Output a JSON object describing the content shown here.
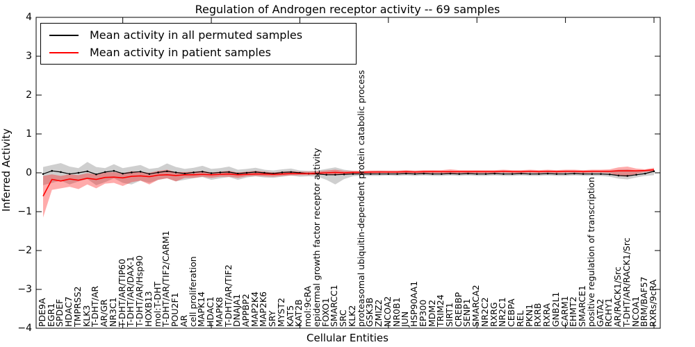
{
  "title": "Regulation of Androgen receptor activity -- 69 samples",
  "legend": {
    "items": [
      {
        "label": "Mean activity in all permuted samples",
        "color": "#000000"
      },
      {
        "label": "Mean activity in patient samples",
        "color": "#ff0000"
      }
    ]
  },
  "chart_data": {
    "type": "line",
    "title": "Regulation of Androgen receptor activity -- 69 samples",
    "xlabel": "Cellular Entities",
    "ylabel": "Inferred Activity",
    "ylim": [
      -4,
      4
    ],
    "yticks": [
      4,
      3,
      2,
      1,
      0,
      -1,
      -2,
      -3,
      -4
    ],
    "xticks": [
      10,
      20,
      30,
      40,
      50,
      60,
      70
    ],
    "grid": false,
    "legend_position": "upper left",
    "band_colors": {
      "permuted": "#808080",
      "patient": "#ff0000"
    },
    "categories": [
      "PDE9A",
      "EGR1",
      "SPDEF",
      "HDAC7",
      "TMPRSS2",
      "KLK3",
      "T-DHT/AR",
      "AR/GR",
      "NR3C1",
      "T-DHT/AR/TIP60",
      "T-DHT/AR/DAX-1",
      "T-DHT/AR/Hsp90",
      "HOXB13",
      "mol:T-DHT",
      "T-DHT/AR/TIF2/CARM1",
      "POU2F1",
      "AR",
      "cell proliferation",
      "MAPK14",
      "HDAC1",
      "MAPK8",
      "T-DHT/AR/TIF2",
      "DNAJA1",
      "APPBP2",
      "MAP2K4",
      "MAP2K6",
      "SRY",
      "MYST2",
      "KAT5",
      "KAT2B",
      "mol:9cRA",
      "epidermal growth factor receptor activity",
      "FOXO1",
      "SMARCC1",
      "SRC",
      "KLK2",
      "proteasomal ubiquitin-dependent protein catabolic process",
      "GSK3B",
      "ZMIZ2",
      "NCOA2",
      "NR0B1",
      "JUN",
      "HSP90AA1",
      "EP300",
      "MDM2",
      "TRIM24",
      "SIRT1",
      "CREBBP",
      "SENP1",
      "SMARCA2",
      "NR2C2",
      "RXRG",
      "NR2C1",
      "CEBPA",
      "REL",
      "PKN1",
      "RXRB",
      "RXRA",
      "GNB2L1",
      "CARM1",
      "EHMT2",
      "SMARCE1",
      "positive regulation of transcription",
      "GATA2",
      "RCHY1",
      "AR/RACK1/Src",
      "T-DHT/AR/RACK1/Src",
      "NCOA1",
      "BRM/BAF57",
      "RXRs/9cRA"
    ],
    "series": [
      {
        "name": "Mean activity in all permuted samples",
        "color": "#000000",
        "values": [
          -0.03,
          0.05,
          0.02,
          -0.03,
          0.0,
          0.04,
          -0.04,
          0.02,
          0.05,
          -0.02,
          0.01,
          0.03,
          -0.03,
          0.01,
          0.04,
          0.01,
          -0.02,
          0.01,
          0.03,
          -0.01,
          0.01,
          0.02,
          -0.02,
          0.0,
          0.02,
          0.0,
          -0.02,
          0.01,
          0.02,
          0.0,
          -0.02,
          -0.03,
          -0.05,
          -0.05,
          -0.04,
          -0.03,
          -0.03,
          -0.03,
          -0.03,
          -0.03,
          -0.03,
          -0.02,
          -0.03,
          -0.02,
          -0.03,
          -0.03,
          -0.02,
          -0.03,
          -0.02,
          -0.03,
          -0.03,
          -0.02,
          -0.03,
          -0.03,
          -0.02,
          -0.03,
          -0.03,
          -0.02,
          -0.03,
          -0.03,
          -0.02,
          -0.03,
          -0.03,
          -0.03,
          -0.04,
          -0.07,
          -0.08,
          -0.05,
          -0.02,
          0.04
        ],
        "band_upper": [
          0.15,
          0.2,
          0.25,
          0.16,
          0.12,
          0.28,
          0.15,
          0.12,
          0.22,
          0.12,
          0.16,
          0.2,
          0.1,
          0.13,
          0.24,
          0.15,
          0.1,
          0.13,
          0.18,
          0.1,
          0.12,
          0.16,
          0.08,
          0.1,
          0.13,
          0.08,
          0.06,
          0.09,
          0.11,
          0.06,
          0.05,
          0.06,
          0.1,
          0.14,
          0.08,
          0.05,
          0.04,
          0.04,
          0.05,
          0.04,
          0.04,
          0.05,
          0.04,
          0.04,
          0.05,
          0.04,
          0.05,
          0.04,
          0.04,
          0.05,
          0.04,
          0.04,
          0.05,
          0.04,
          0.04,
          0.05,
          0.04,
          0.04,
          0.05,
          0.04,
          0.04,
          0.05,
          0.04,
          0.04,
          0.05,
          0.08,
          0.09,
          0.06,
          0.05,
          0.09
        ],
        "band_lower": [
          -0.32,
          -0.26,
          -0.2,
          -0.3,
          -0.22,
          -0.16,
          -0.32,
          -0.24,
          -0.14,
          -0.26,
          -0.3,
          -0.2,
          -0.26,
          -0.18,
          -0.14,
          -0.22,
          -0.18,
          -0.14,
          -0.11,
          -0.18,
          -0.14,
          -0.11,
          -0.18,
          -0.12,
          -0.09,
          -0.12,
          -0.13,
          -0.1,
          -0.07,
          -0.1,
          -0.09,
          -0.1,
          -0.18,
          -0.3,
          -0.16,
          -0.09,
          -0.07,
          -0.08,
          -0.08,
          -0.07,
          -0.08,
          -0.07,
          -0.08,
          -0.07,
          -0.08,
          -0.08,
          -0.07,
          -0.08,
          -0.07,
          -0.08,
          -0.08,
          -0.07,
          -0.08,
          -0.08,
          -0.07,
          -0.08,
          -0.08,
          -0.07,
          -0.08,
          -0.08,
          -0.07,
          -0.08,
          -0.08,
          -0.08,
          -0.1,
          -0.15,
          -0.17,
          -0.12,
          -0.08,
          -0.06
        ]
      },
      {
        "name": "Mean activity in patient samples",
        "color": "#ff0000",
        "values": [
          -0.6,
          -0.17,
          -0.21,
          -0.16,
          -0.19,
          -0.14,
          -0.17,
          -0.12,
          -0.11,
          -0.13,
          -0.09,
          -0.08,
          -0.1,
          -0.06,
          -0.05,
          -0.07,
          -0.05,
          -0.05,
          -0.04,
          -0.05,
          -0.04,
          -0.03,
          -0.05,
          -0.04,
          -0.03,
          -0.03,
          -0.04,
          -0.03,
          -0.02,
          -0.02,
          -0.02,
          -0.01,
          0.0,
          0.01,
          0.0,
          0.01,
          0.01,
          0.02,
          0.02,
          0.02,
          0.02,
          0.03,
          0.02,
          0.03,
          0.03,
          0.03,
          0.03,
          0.03,
          0.03,
          0.03,
          0.03,
          0.03,
          0.04,
          0.03,
          0.03,
          0.04,
          0.03,
          0.04,
          0.03,
          0.04,
          0.04,
          0.03,
          0.04,
          0.04,
          0.04,
          0.05,
          0.05,
          0.05,
          0.06,
          0.08
        ],
        "band_upper": [
          -0.08,
          -0.04,
          -0.08,
          -0.04,
          -0.06,
          -0.01,
          -0.04,
          0.01,
          0.02,
          -0.01,
          0.04,
          0.03,
          0.0,
          0.05,
          0.08,
          0.02,
          0.02,
          0.03,
          0.05,
          0.01,
          0.03,
          0.05,
          0.01,
          0.03,
          0.05,
          0.03,
          0.01,
          0.03,
          0.04,
          0.03,
          0.03,
          0.04,
          0.06,
          0.08,
          0.05,
          0.05,
          0.05,
          0.06,
          0.06,
          0.06,
          0.06,
          0.07,
          0.06,
          0.07,
          0.07,
          0.07,
          0.09,
          0.07,
          0.07,
          0.07,
          0.07,
          0.07,
          0.08,
          0.07,
          0.07,
          0.08,
          0.07,
          0.08,
          0.07,
          0.08,
          0.08,
          0.07,
          0.08,
          0.08,
          0.09,
          0.14,
          0.16,
          0.11,
          0.09,
          0.13
        ],
        "band_lower": [
          -1.15,
          -0.44,
          -0.4,
          -0.36,
          -0.42,
          -0.3,
          -0.4,
          -0.28,
          -0.26,
          -0.34,
          -0.24,
          -0.2,
          -0.3,
          -0.18,
          -0.14,
          -0.22,
          -0.13,
          -0.13,
          -0.1,
          -0.13,
          -0.1,
          -0.1,
          -0.13,
          -0.09,
          -0.08,
          -0.09,
          -0.1,
          -0.08,
          -0.07,
          -0.06,
          -0.06,
          -0.05,
          -0.05,
          -0.06,
          -0.04,
          -0.03,
          -0.02,
          -0.02,
          -0.01,
          -0.01,
          -0.01,
          -0.01,
          -0.01,
          -0.01,
          -0.01,
          -0.01,
          -0.03,
          -0.01,
          -0.01,
          -0.01,
          -0.01,
          -0.01,
          0.0,
          -0.01,
          -0.01,
          0.0,
          -0.01,
          0.0,
          -0.01,
          0.0,
          0.0,
          -0.01,
          0.0,
          0.0,
          -0.01,
          -0.08,
          -0.1,
          -0.03,
          0.02,
          0.03
        ]
      }
    ]
  }
}
